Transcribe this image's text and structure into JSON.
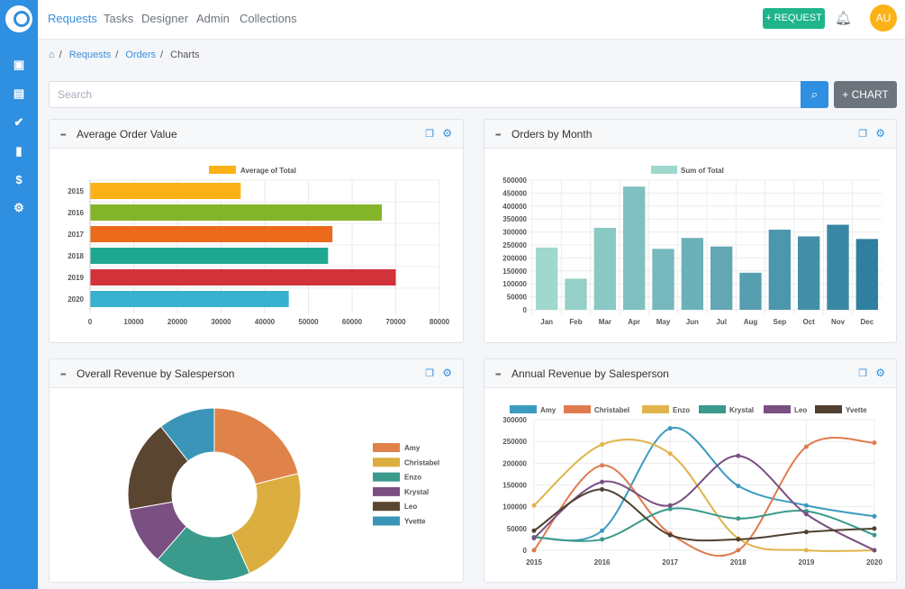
{
  "nav": {
    "items": [
      "Requests",
      "Tasks",
      "Designer",
      "Admin",
      "Collections"
    ],
    "active": "Requests",
    "request_button": "+ REQUEST",
    "avatar": "AU"
  },
  "breadcrumb": [
    "Requests",
    "Orders",
    "Charts"
  ],
  "search": {
    "placeholder": "Search",
    "add_chart": "+ CHART"
  },
  "colors": {
    "sidebar": "#2f8fe0",
    "request_button": "#1fb58a",
    "avatar": "#fbb216"
  },
  "cards": [
    {
      "title": "Average Order Value"
    },
    {
      "title": "Orders by Month"
    },
    {
      "title": "Overall Revenue by Salesperson"
    },
    {
      "title": "Annual Revenue by Salesperson"
    }
  ],
  "chart_data": [
    {
      "type": "bar",
      "orientation": "horizontal",
      "legend": "Average of Total",
      "categories": [
        "2015",
        "2016",
        "2017",
        "2018",
        "2019",
        "2020"
      ],
      "values": [
        34500,
        66800,
        55500,
        54500,
        70000,
        45500
      ],
      "colors": [
        "#fbb216",
        "#84b42a",
        "#ec6a1c",
        "#1fa891",
        "#d2323a",
        "#38b1cf"
      ],
      "xlim": [
        0,
        80000
      ],
      "xticks": [
        "0",
        "10000",
        "20000",
        "30000",
        "40000",
        "50000",
        "60000",
        "70000",
        "80000"
      ],
      "grid": true,
      "legend_position": "top"
    },
    {
      "type": "bar",
      "legend": "Sum of Total",
      "categories": [
        "Jan",
        "Feb",
        "Mar",
        "Apr",
        "May",
        "Jun",
        "Jul",
        "Aug",
        "Sep",
        "Oct",
        "Nov",
        "Dec"
      ],
      "values": [
        240000,
        120000,
        316000,
        475000,
        235000,
        277000,
        244000,
        143000,
        309000,
        283000,
        328000,
        273000
      ],
      "ylim": [
        0,
        500000
      ],
      "yticks": [
        "0",
        "50000",
        "100000",
        "150000",
        "200000",
        "250000",
        "300000",
        "350000",
        "400000",
        "450000",
        "500000"
      ],
      "grid": true,
      "legend_position": "top"
    },
    {
      "type": "pie",
      "donut": true,
      "labels": [
        "Amy",
        "Christabel",
        "Enzo",
        "Krystal",
        "Leo",
        "Yvette"
      ],
      "values": [
        21.1,
        22.2,
        18.1,
        10.8,
        17.2,
        10.6
      ],
      "colors": [
        "#e0834a",
        "#dcae3f",
        "#3a9a8c",
        "#7a4f82",
        "#5a4530",
        "#3b95b8"
      ],
      "legend_position": "right"
    },
    {
      "type": "line",
      "smooth": true,
      "x": [
        "2015",
        "2016",
        "2017",
        "2018",
        "2019",
        "2020"
      ],
      "ylim": [
        0,
        300000
      ],
      "yticks": [
        "0",
        "50000",
        "100000",
        "150000",
        "200000",
        "250000",
        "300000"
      ],
      "grid": true,
      "legend_position": "top",
      "series": [
        {
          "name": "Amy",
          "color": "#3b9bbf",
          "values": [
            30000,
            45000,
            280000,
            148000,
            103000,
            78000
          ]
        },
        {
          "name": "Christabel",
          "color": "#e07b4f",
          "values": [
            0,
            195000,
            38000,
            0,
            238000,
            247000
          ]
        },
        {
          "name": "Enzo",
          "color": "#e0b44a",
          "values": [
            103000,
            243000,
            222000,
            27000,
            0,
            0
          ]
        },
        {
          "name": "Krystal",
          "color": "#3a9a8c",
          "values": [
            30000,
            25000,
            95000,
            73000,
            90000,
            35000
          ]
        },
        {
          "name": "Leo",
          "color": "#7a4f82",
          "values": [
            28000,
            157000,
            103000,
            217000,
            83000,
            0
          ]
        },
        {
          "name": "Yvette",
          "color": "#4f4030",
          "values": [
            45000,
            140000,
            35000,
            25000,
            42000,
            50000
          ]
        }
      ]
    }
  ]
}
